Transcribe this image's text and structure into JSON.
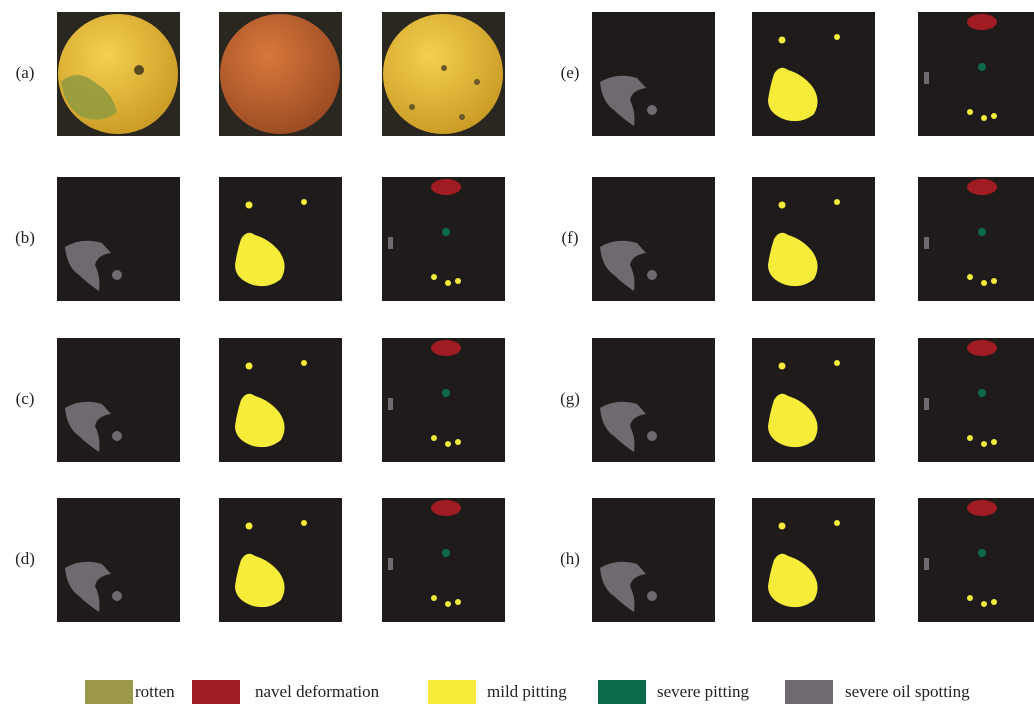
{
  "panels": [
    {
      "label": "(a)"
    },
    {
      "label": "(b)"
    },
    {
      "label": "(c)"
    },
    {
      "label": "(d)"
    },
    {
      "label": "(e)"
    },
    {
      "label": "(f)"
    },
    {
      "label": "(g)"
    },
    {
      "label": "(h)"
    }
  ],
  "legend": [
    {
      "label": "rotten",
      "color": "#9c9a4a"
    },
    {
      "label": "navel deformation",
      "color": "#a01c22"
    },
    {
      "label": "mild pitting",
      "color": "#f7ec3a"
    },
    {
      "label": "severe pitting",
      "color": "#0c6a48"
    },
    {
      "label": "severe oil spotting",
      "color": "#6e6a70"
    }
  ]
}
